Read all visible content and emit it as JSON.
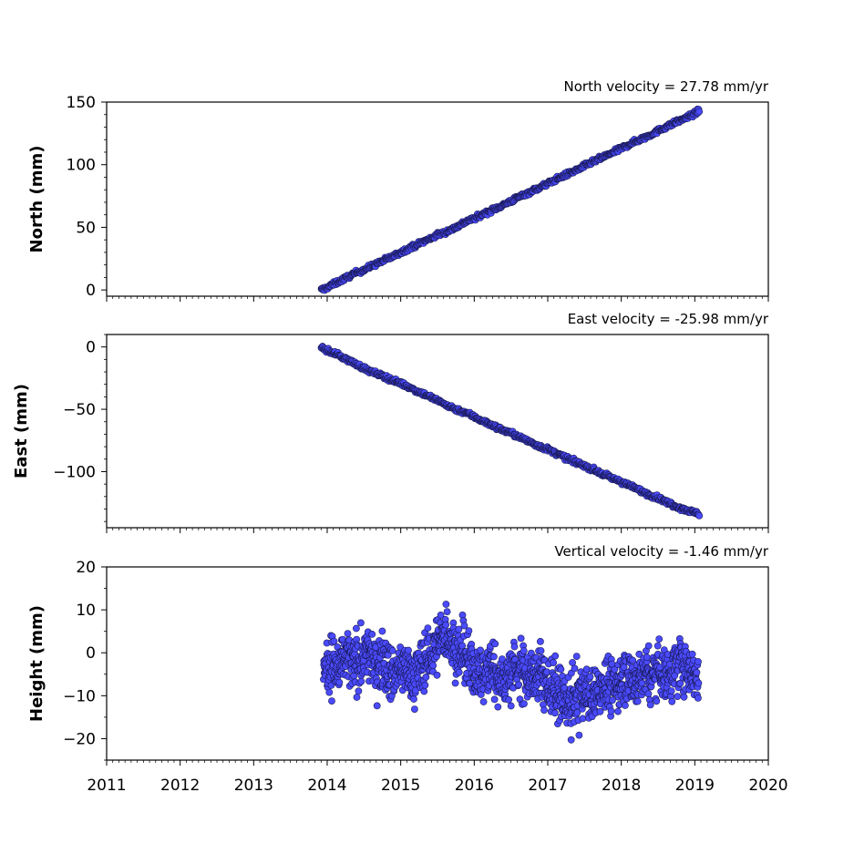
{
  "chart_data": [
    {
      "type": "scatter",
      "title": "North velocity = 27.78 mm/yr",
      "xlabel": "",
      "ylabel": "North (mm)",
      "xlim": [
        2011,
        2020
      ],
      "ylim": [
        -5,
        150
      ],
      "yticks": [
        0,
        50,
        100,
        150
      ],
      "ytick_labels": [
        "0",
        "50",
        "100",
        "150"
      ],
      "xticks": [
        2011,
        2012,
        2013,
        2014,
        2015,
        2016,
        2017,
        2018,
        2019,
        2020
      ],
      "xtick_labels": [],
      "marker_color": "#4a4aff",
      "series": [
        {
          "x": [
            2013.92,
            2014.0,
            2014.1,
            2014.2,
            2014.3,
            2014.4,
            2014.5,
            2014.6,
            2014.75,
            2014.9,
            2015.0,
            2015.1,
            2015.25,
            2015.4,
            2015.5,
            2015.6,
            2015.75,
            2015.9,
            2016.0,
            2016.1,
            2016.25,
            2016.4,
            2016.5,
            2016.6,
            2016.75,
            2016.9,
            2017.0,
            2017.1,
            2017.25,
            2017.4,
            2017.5,
            2017.6,
            2017.75,
            2017.9,
            2018.0,
            2018.1,
            2018.25,
            2018.4,
            2018.5,
            2018.6,
            2018.75,
            2018.9,
            2019.0,
            2019.06
          ],
          "y": [
            0,
            2,
            5,
            8,
            11,
            14,
            16,
            19,
            23,
            27,
            30,
            33,
            37,
            41,
            44,
            46,
            50,
            55,
            57,
            60,
            64,
            68,
            71,
            74,
            78,
            82,
            85,
            88,
            92,
            96,
            99,
            102,
            106,
            110,
            113,
            116,
            120,
            124,
            127,
            130,
            134,
            138,
            141,
            143
          ]
        }
      ]
    },
    {
      "type": "scatter",
      "title": "East velocity = -25.98 mm/yr",
      "xlabel": "",
      "ylabel": "East (mm)",
      "xlim": [
        2011,
        2020
      ],
      "ylim": [
        -145,
        10
      ],
      "yticks": [
        0,
        -50,
        -100
      ],
      "ytick_labels": [
        "0",
        "−50",
        "−100"
      ],
      "xticks": [
        2011,
        2012,
        2013,
        2014,
        2015,
        2016,
        2017,
        2018,
        2019,
        2020
      ],
      "xtick_labels": [],
      "marker_color": "#4a4aff",
      "series": [
        {
          "x": [
            2013.92,
            2014.0,
            2014.1,
            2014.2,
            2014.3,
            2014.4,
            2014.5,
            2014.6,
            2014.75,
            2014.9,
            2015.0,
            2015.1,
            2015.25,
            2015.4,
            2015.5,
            2015.6,
            2015.75,
            2015.9,
            2016.0,
            2016.1,
            2016.25,
            2016.4,
            2016.5,
            2016.6,
            2016.75,
            2016.9,
            2017.0,
            2017.1,
            2017.25,
            2017.4,
            2017.5,
            2017.6,
            2017.75,
            2017.9,
            2018.0,
            2018.1,
            2018.25,
            2018.4,
            2018.5,
            2018.6,
            2018.75,
            2018.9,
            2019.0,
            2019.06
          ],
          "y": [
            0,
            -3,
            -5,
            -8,
            -11,
            -14,
            -17,
            -20,
            -23,
            -27,
            -29,
            -32,
            -36,
            -40,
            -43,
            -46,
            -50,
            -53,
            -56,
            -59,
            -63,
            -67,
            -69,
            -72,
            -76,
            -80,
            -82,
            -85,
            -89,
            -93,
            -95,
            -98,
            -102,
            -106,
            -108,
            -111,
            -115,
            -119,
            -121,
            -124,
            -128,
            -131,
            -133,
            -134
          ]
        }
      ]
    },
    {
      "type": "scatter",
      "title": "Vertical velocity = -1.46 mm/yr",
      "xlabel": "",
      "ylabel": "Height (mm)",
      "xlim": [
        2011,
        2020
      ],
      "ylim": [
        -25,
        20
      ],
      "yticks": [
        20,
        10,
        0,
        -10,
        -20
      ],
      "ytick_labels": [
        "20",
        "10",
        "0",
        "−10",
        "−20"
      ],
      "xticks": [
        2011,
        2012,
        2013,
        2014,
        2015,
        2016,
        2017,
        2018,
        2019,
        2020
      ],
      "xtick_labels": [
        "2011",
        "2012",
        "2013",
        "2014",
        "2015",
        "2016",
        "2017",
        "2018",
        "2019",
        "2020"
      ],
      "marker_color": "#4a4aff",
      "series": [
        {
          "x": [
            2013.95,
            2014.05,
            2014.15,
            2014.25,
            2014.35,
            2014.45,
            2014.55,
            2014.65,
            2014.75,
            2014.85,
            2014.95,
            2015.05,
            2015.15,
            2015.25,
            2015.35,
            2015.45,
            2015.55,
            2015.62,
            2015.7,
            2015.8,
            2015.9,
            2016.0,
            2016.1,
            2016.2,
            2016.3,
            2016.4,
            2016.5,
            2016.6,
            2016.7,
            2016.8,
            2016.9,
            2017.0,
            2017.1,
            2017.2,
            2017.3,
            2017.4,
            2017.5,
            2017.6,
            2017.7,
            2017.8,
            2017.9,
            2018.0,
            2018.1,
            2018.2,
            2018.3,
            2018.4,
            2018.5,
            2018.6,
            2018.7,
            2018.8,
            2018.9,
            2019.0,
            2019.05
          ],
          "y": [
            -3,
            -2,
            -4,
            -1,
            -3,
            -2,
            0,
            -3,
            -1,
            -4,
            -5,
            -3,
            -6,
            -4,
            -2,
            1,
            3,
            5,
            2,
            0,
            -2,
            -4,
            -6,
            -3,
            -5,
            -7,
            -4,
            -3,
            -5,
            -6,
            -4,
            -8,
            -9,
            -11,
            -12,
            -10,
            -9,
            -11,
            -8,
            -7,
            -9,
            -6,
            -5,
            -7,
            -4,
            -6,
            -3,
            -5,
            -4,
            -2,
            -3,
            -5,
            -6
          ]
        }
      ]
    }
  ]
}
